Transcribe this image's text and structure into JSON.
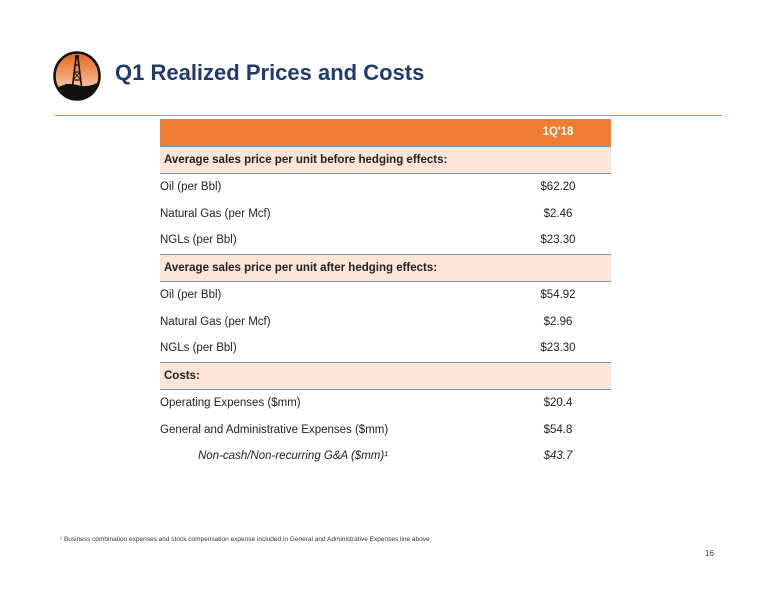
{
  "title": "Q1 Realized Prices and Costs",
  "logo_icon": "oil-derrick-icon",
  "colors": {
    "accent": "#ee7d31",
    "title": "#1f3a6b",
    "section_fill": "#fce4d6"
  },
  "table": {
    "column_header": "1Q'18",
    "sections": [
      {
        "label": "Average sales price per unit before hedging effects:",
        "rows": [
          {
            "label": "Oil (per Bbl)",
            "value": "$62.20"
          },
          {
            "label": "Natural Gas (per Mcf)",
            "value": "$2.46"
          },
          {
            "label": "NGLs (per Bbl)",
            "value": "$23.30"
          }
        ]
      },
      {
        "label": "Average sales price per unit after hedging effects:",
        "rows": [
          {
            "label": "Oil (per Bbl)",
            "value": "$54.92"
          },
          {
            "label": "Natural Gas (per Mcf)",
            "value": "$2.96"
          },
          {
            "label": "NGLs (per Bbl)",
            "value": "$23.30"
          }
        ]
      },
      {
        "label": "Costs:",
        "rows": [
          {
            "label": "Operating Expenses ($mm)",
            "value": "$20.4"
          },
          {
            "label": "General and Administrative Expenses ($mm)",
            "value": "$54.8"
          },
          {
            "label": "Non-cash/Non-recurring G&A ($mm)¹",
            "value": "$43.7"
          }
        ]
      }
    ]
  },
  "footnote": "¹ Business combination expenses and stock compensation expense included in General and Administrative Expenses line above",
  "page_number": "16"
}
